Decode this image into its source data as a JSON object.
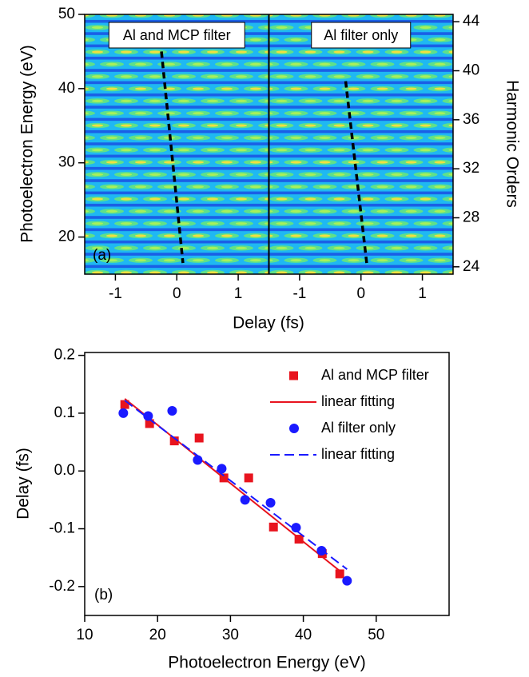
{
  "chart_data": [
    {
      "type": "heatmap",
      "label": "(a)",
      "xlabel": "Delay (fs)",
      "ylabel": "Photoelectron Energy (eV)",
      "y2label": "Harmonic Orders",
      "ylim": [
        15,
        50
      ],
      "yticks": [
        20,
        30,
        40,
        50
      ],
      "y2lim": [
        23.4,
        44.6
      ],
      "y2ticks": [
        24,
        28,
        32,
        36,
        40,
        44
      ],
      "panels": [
        {
          "title": "Al and MCP filter",
          "xlim": [
            -1.5,
            1.5
          ],
          "xticks": [
            -1,
            0,
            1
          ],
          "line": {
            "x": [
              -0.25,
              0.1
            ],
            "y": [
              45,
              16.5
            ],
            "color": "#000000"
          }
        },
        {
          "title": "Al filter only",
          "xlim": [
            -1.5,
            1.5
          ],
          "xticks": [
            -1,
            0,
            1
          ],
          "line": {
            "x": [
              -0.25,
              0.1
            ],
            "y": [
              41,
              16
            ],
            "color": "#000000"
          }
        }
      ]
    },
    {
      "type": "scatter",
      "label": "(b)",
      "xlabel": "Photoelectron Energy (eV)",
      "ylabel": "Delay (fs)",
      "xlim": [
        10,
        60
      ],
      "xticks": [
        10,
        20,
        30,
        40,
        50
      ],
      "ylim": [
        -0.25,
        0.205
      ],
      "yticks": [
        -0.2,
        -0.1,
        {
          "value": 0,
          "label": "0.0"
        },
        0.1,
        0.2
      ],
      "series": [
        {
          "name": "Al and MCP filter",
          "kind": "square",
          "color": "#e8141e",
          "x": [
            15.5,
            18.9,
            22.3,
            25.7,
            29.1,
            32.5,
            35.9,
            39.4,
            42.6,
            45
          ],
          "values": [
            0.115,
            0.082,
            0.052,
            0.057,
            -0.012,
            -0.012,
            -0.097,
            -0.118,
            -0.143,
            -0.178
          ]
        },
        {
          "name": "linear fitting",
          "kind": "solid",
          "color": "#e8141e",
          "x": [
            15.5,
            45.5
          ],
          "values": [
            0.125,
            -0.178
          ]
        },
        {
          "name": "Al filter only",
          "kind": "circle",
          "color": "#1a1aff",
          "x": [
            15.3,
            18.7,
            22,
            25.5,
            28.8,
            32,
            35.5,
            39,
            42.5,
            46
          ],
          "values": [
            0.1,
            0.095,
            0.104,
            0.019,
            0.004,
            -0.05,
            -0.055,
            -0.098,
            -0.138,
            -0.19
          ]
        },
        {
          "name": "linear fitting",
          "kind": "dashed",
          "color": "#1a1aff",
          "x": [
            15.5,
            46
          ],
          "values": [
            0.122,
            -0.17
          ]
        }
      ]
    }
  ]
}
